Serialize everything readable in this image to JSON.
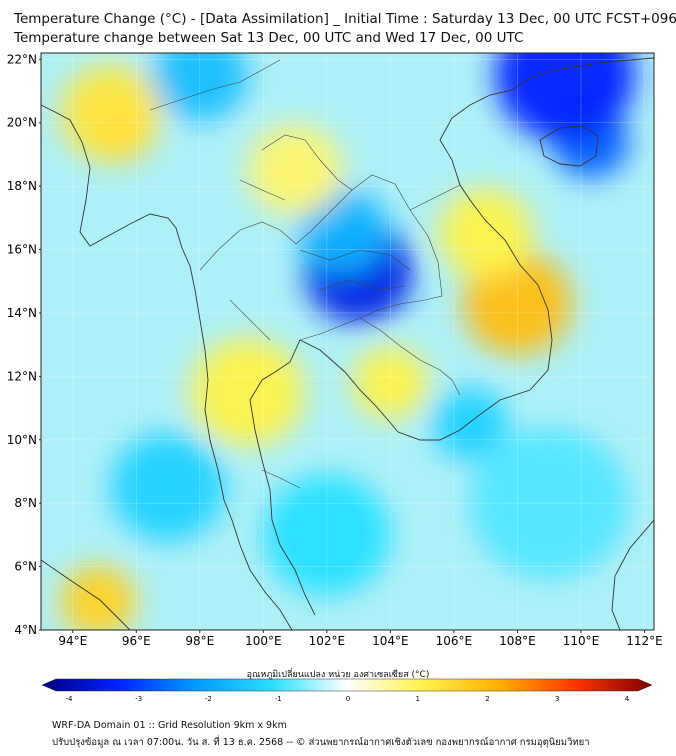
{
  "title": {
    "line1": "Temperature Change (°C) - [Data Assimilation] _ Initial Time : Saturday 13 Dec, 00 UTC FCST+096",
    "line2": "Temperature change between Sat 13 Dec, 00 UTC and Wed 17 Dec, 00 UTC"
  },
  "axes": {
    "lat_labels": [
      "22°N",
      "20°N",
      "18°N",
      "16°N",
      "14°N",
      "12°N",
      "10°N",
      "8°N",
      "6°N",
      "4°N"
    ],
    "lat_values": [
      22,
      20,
      18,
      16,
      14,
      12,
      10,
      8,
      6,
      4
    ],
    "lon_labels": [
      "94°E",
      "96°E",
      "98°E",
      "100°E",
      "102°E",
      "104°E",
      "106°E",
      "108°E",
      "110°E",
      "112°E"
    ],
    "lon_values": [
      94,
      96,
      98,
      100,
      102,
      104,
      106,
      108,
      110,
      112
    ],
    "lon_range": [
      93,
      112.3
    ],
    "lat_range": [
      4,
      22.2
    ]
  },
  "colorbar": {
    "label": "อุณหภูมิเปลี่ยนแปลง หน่วย องศาเซลเซียส (°C)",
    "ticks": [
      "-4",
      "-3",
      "-2",
      "-1",
      "0",
      "1",
      "2",
      "3",
      "4"
    ],
    "range": [
      -4,
      4
    ]
  },
  "field": [
    {
      "lon": 95.5,
      "lat": 19.5,
      "value": 2.4,
      "r": 0.8
    },
    {
      "lon": 95.2,
      "lat": 20.3,
      "value": 1.2,
      "r": 1.6
    },
    {
      "lon": 94.8,
      "lat": 4.9,
      "value": 1.5,
      "r": 1.2
    },
    {
      "lon": 103.0,
      "lat": 15.3,
      "value": -3.2,
      "r": 1.7
    },
    {
      "lon": 102.5,
      "lat": 16.6,
      "value": -1.6,
      "r": 1.4
    },
    {
      "lon": 108.0,
      "lat": 14.3,
      "value": 1.8,
      "r": 1.7
    },
    {
      "lon": 107.0,
      "lat": 16.5,
      "value": 1.0,
      "r": 1.5
    },
    {
      "lon": 110.3,
      "lat": 19.4,
      "value": -2.5,
      "r": 1.2
    },
    {
      "lon": 109.5,
      "lat": 21.5,
      "value": -3.0,
      "r": 2.2
    },
    {
      "lon": 99.5,
      "lat": 11.5,
      "value": 1.0,
      "r": 1.8
    },
    {
      "lon": 104.0,
      "lat": 11.8,
      "value": 1.0,
      "r": 1.2
    },
    {
      "lon": 101.0,
      "lat": 18.5,
      "value": 0.8,
      "r": 1.5
    },
    {
      "lon": 97.0,
      "lat": 8.5,
      "value": -1.2,
      "r": 1.8
    },
    {
      "lon": 102.0,
      "lat": 7.0,
      "value": -1.0,
      "r": 2.0
    },
    {
      "lon": 109.0,
      "lat": 8.0,
      "value": -0.8,
      "r": 2.5
    },
    {
      "lon": 98.0,
      "lat": 21.5,
      "value": -1.5,
      "r": 1.5
    },
    {
      "lon": 106.5,
      "lat": 10.5,
      "value": -1.2,
      "r": 1.2
    }
  ],
  "footer": {
    "line1": "WRF-DA Domain 01 :: Grid Resolution 9km x 9km",
    "line2": "ปรับปรุงข้อมูล ณ เวลา 07:00น. วัน ส. ที่ 13 ธ.ค. 2568 -- © ส่วนพยากรณ์อากาศเชิงตัวเลข กองพยากรณ์อากาศ กรมอุตุนิยมวิทยา"
  },
  "colors": {
    "background": "#ffffff",
    "coast": "#333333"
  }
}
